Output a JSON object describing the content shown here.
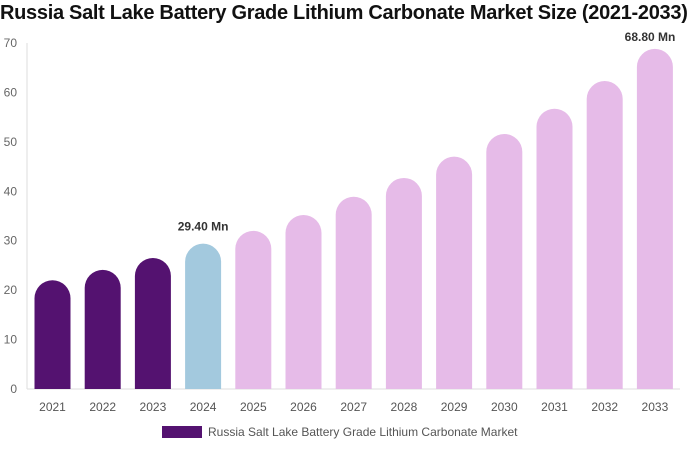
{
  "chart_data": {
    "type": "bar",
    "title": "Russia Salt Lake Battery Grade Lithium Carbonate Market Size (2021-2033)",
    "categories": [
      "2021",
      "2022",
      "2023",
      "2024",
      "2025",
      "2026",
      "2027",
      "2028",
      "2029",
      "2030",
      "2031",
      "2032",
      "2033"
    ],
    "series": [
      {
        "name": "Russia Salt Lake Battery Grade Lithium Carbonate Market",
        "values": [
          22.0,
          24.1,
          26.5,
          29.4,
          32.0,
          35.2,
          38.9,
          42.7,
          47.0,
          51.6,
          56.7,
          62.3,
          68.8
        ]
      }
    ],
    "data_labels": {
      "3": "29.40 Mn",
      "12": "68.80 Mn"
    },
    "ylim": [
      0,
      70
    ],
    "yticks": [
      0,
      10,
      20,
      30,
      40,
      50,
      60,
      70
    ],
    "grid": false,
    "legend": "bottom",
    "colors": {
      "historical": "#541270",
      "current": "#a3c9de",
      "forecast": "#e6bbe8"
    }
  }
}
